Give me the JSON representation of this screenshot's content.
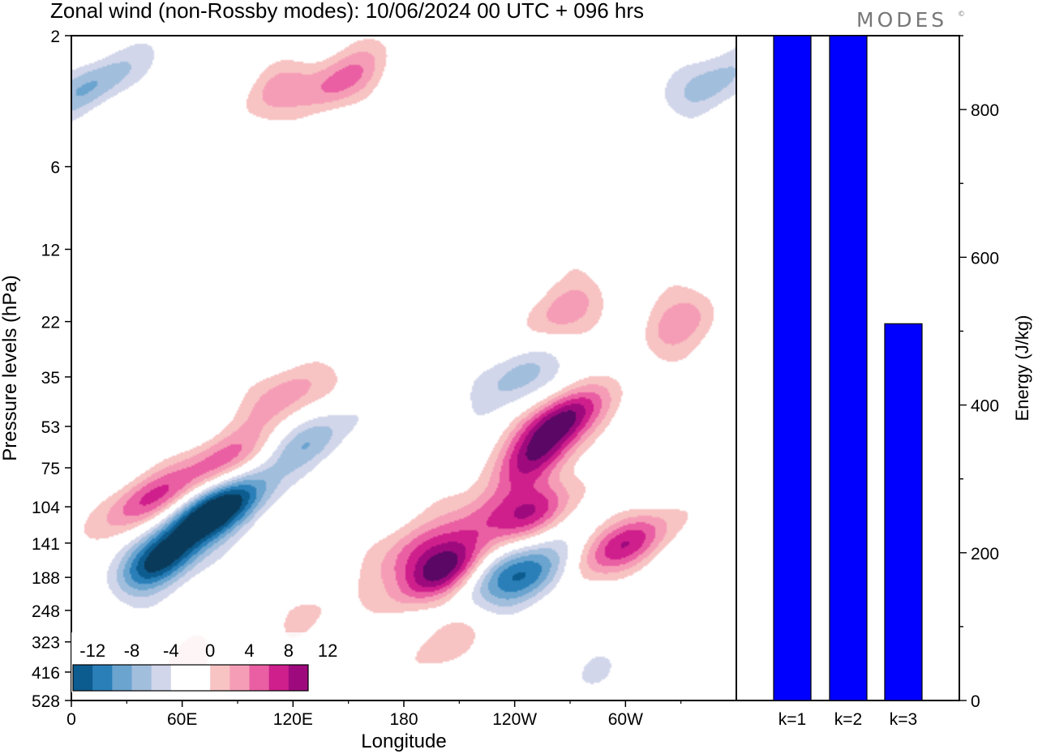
{
  "title": "Zonal wind (non-Rossby modes):  10/06/2024  00 UTC  + 096 hrs",
  "brand": "MODES",
  "brand_mark": "©",
  "colors": {
    "contour_levels": [
      -12,
      -10,
      -8,
      -6,
      -4,
      -2,
      0,
      2,
      4,
      6,
      8,
      10,
      12
    ],
    "palette": [
      "#0a3a5a",
      "#0d5c8f",
      "#2a7fb8",
      "#6aa4cf",
      "#a2bedd",
      "#d2d6ea",
      "#ffffff",
      "#ffffff",
      "#f8c3c3",
      "#f59db6",
      "#ea5fa3",
      "#cf1f8c",
      "#9e0a7e",
      "#5a0766"
    ],
    "bar": "#0000ff",
    "bar_edge": "#000000"
  },
  "chart_data": [
    {
      "type": "heatmap",
      "title": "Zonal wind (non-Rossby modes):  10/06/2024  00 UTC  + 096 hrs",
      "xlabel": "Longitude",
      "ylabel": "Pressure levels (hPa)",
      "x_ticks": [
        "0",
        "60E",
        "120E",
        "180",
        "120W",
        "60W"
      ],
      "x_range": [
        0,
        360
      ],
      "y_ticks": [
        "2",
        "6",
        "12",
        "22",
        "35",
        "53",
        "75",
        "104",
        "141",
        "188",
        "248",
        "323",
        "416",
        "528"
      ],
      "y_direction": "pressure increasing downward",
      "colorbar": {
        "labels": [
          "-12",
          "-8",
          "-4",
          "0",
          "4",
          "8",
          "12"
        ],
        "levels": [
          -12,
          -10,
          -8,
          -6,
          -4,
          -2,
          0,
          2,
          4,
          6,
          8,
          10,
          12
        ],
        "placement": "bottom-left inset"
      },
      "features": [
        {
          "lon": 48,
          "plev": 165,
          "value": -13,
          "sign": "negative"
        },
        {
          "lon": 70,
          "plev": 115,
          "value": -11,
          "sign": "negative"
        },
        {
          "lon": 90,
          "plev": 100,
          "value": -8,
          "sign": "negative"
        },
        {
          "lon": 130,
          "plev": 60,
          "value": -5,
          "sign": "negative"
        },
        {
          "lon": 240,
          "plev": 35,
          "value": -6,
          "sign": "negative"
        },
        {
          "lon": 250,
          "plev": 190,
          "value": -8,
          "sign": "negative"
        },
        {
          "lon": 235,
          "plev": 175,
          "value": -5,
          "sign": "negative"
        },
        {
          "lon": 12,
          "plev": 3,
          "value": -6,
          "sign": "negative"
        },
        {
          "lon": 350,
          "plev": 3,
          "value": -6,
          "sign": "negative"
        },
        {
          "lon": 280,
          "plev": 400,
          "value": -2,
          "sign": "negative"
        },
        {
          "lon": 40,
          "plev": 100,
          "value": 8,
          "sign": "positive"
        },
        {
          "lon": 80,
          "plev": 72,
          "value": 7,
          "sign": "positive"
        },
        {
          "lon": 115,
          "plev": 40,
          "value": 6,
          "sign": "positive"
        },
        {
          "lon": 200,
          "plev": 180,
          "value": 12,
          "sign": "positive"
        },
        {
          "lon": 185,
          "plev": 150,
          "value": 7,
          "sign": "positive"
        },
        {
          "lon": 265,
          "plev": 50,
          "value": 12,
          "sign": "positive"
        },
        {
          "lon": 252,
          "plev": 70,
          "value": 9,
          "sign": "positive"
        },
        {
          "lon": 250,
          "plev": 110,
          "value": 8,
          "sign": "positive"
        },
        {
          "lon": 225,
          "plev": 110,
          "value": 6,
          "sign": "positive"
        },
        {
          "lon": 305,
          "plev": 140,
          "value": 7,
          "sign": "positive"
        },
        {
          "lon": 285,
          "plev": 150,
          "value": 4,
          "sign": "positive"
        },
        {
          "lon": 265,
          "plev": 20,
          "value": 6,
          "sign": "positive"
        },
        {
          "lon": 330,
          "plev": 22,
          "value": 6,
          "sign": "positive"
        },
        {
          "lon": 145,
          "plev": 3,
          "value": 7,
          "sign": "positive"
        },
        {
          "lon": 110,
          "plev": 3,
          "value": 4,
          "sign": "positive"
        },
        {
          "lon": 60,
          "plev": 400,
          "value": 3,
          "sign": "positive"
        },
        {
          "lon": 200,
          "plev": 330,
          "value": 3,
          "sign": "positive"
        },
        {
          "lon": 130,
          "plev": 250,
          "value": 3,
          "sign": "positive"
        }
      ]
    },
    {
      "type": "bar",
      "categories": [
        "k=1",
        "k=2",
        "k=3"
      ],
      "values": [
        900,
        900,
        510
      ],
      "ylabel": "Energy (J/kg)",
      "ylim": [
        0,
        900
      ],
      "y_ticks": [
        0,
        200,
        400,
        600,
        800
      ]
    }
  ]
}
